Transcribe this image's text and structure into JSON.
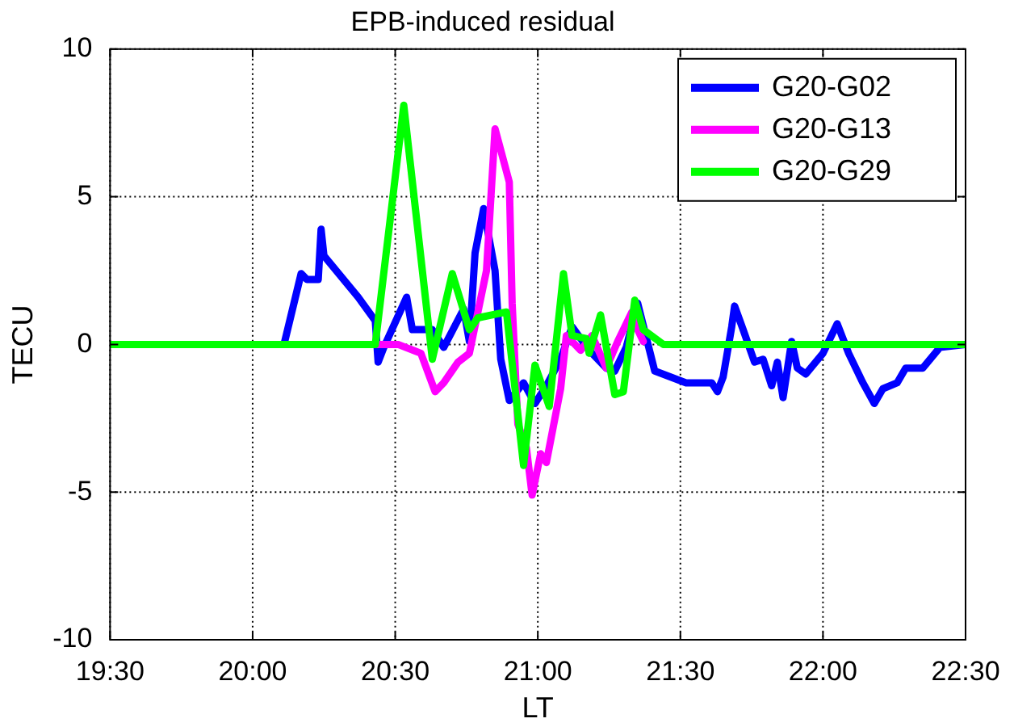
{
  "chart_data": {
    "type": "line",
    "title": "EPB-induced residual",
    "xlabel": "LT",
    "ylabel": "TECU",
    "xlim": [
      19.5,
      22.5
    ],
    "xticks": [
      {
        "value": 19.5,
        "label": "19:30"
      },
      {
        "value": 20,
        "label": "20:00"
      },
      {
        "value": 20.5,
        "label": "20:30"
      },
      {
        "value": 21,
        "label": "21:00"
      },
      {
        "value": 21.5,
        "label": "21:30"
      },
      {
        "value": 22,
        "label": "22:00"
      },
      {
        "value": 22.5,
        "label": "22:30"
      }
    ],
    "ylim": [
      -10,
      10
    ],
    "yticks": [
      -10,
      -5,
      0,
      5,
      10
    ],
    "grid": true,
    "legend": "top right",
    "marker": "none",
    "line_style": "solid",
    "series": [
      {
        "name": "G20-G02",
        "color": "#0000ff",
        "x": [
          19.5,
          20.11,
          20.17,
          20.19,
          20.23,
          20.24,
          20.25,
          20.37,
          20.43,
          20.44,
          20.46,
          20.54,
          20.56,
          20.63,
          20.67,
          20.74,
          20.76,
          20.78,
          20.81,
          20.85,
          20.87,
          20.9,
          20.95,
          20.99,
          21.03,
          21.08,
          21.12,
          21.18,
          21.24,
          21.27,
          21.31,
          21.35,
          21.41,
          21.52,
          21.61,
          21.63,
          21.65,
          21.68,
          21.69,
          21.72,
          21.76,
          21.79,
          21.82,
          21.84,
          21.86,
          21.89,
          21.91,
          21.94,
          22,
          22.05,
          22.09,
          22.14,
          22.18,
          22.21,
          22.26,
          22.29,
          22.35,
          22.41,
          22.5
        ],
        "values": [
          0,
          0,
          2.4,
          2.2,
          2.2,
          3.9,
          3,
          1.6,
          0.8,
          -0.6,
          -0.1,
          1.6,
          0.5,
          0.5,
          -0.1,
          1.2,
          0.1,
          3.1,
          4.6,
          2.5,
          -0.5,
          -1.9,
          -1.3,
          -2,
          -1.4,
          -0.5,
          0.6,
          -0.2,
          -0.8,
          -0.9,
          -0.1,
          1.4,
          -0.9,
          -1.3,
          -1.3,
          -1.6,
          -1.1,
          0.6,
          1.3,
          0.5,
          -0.6,
          -0.5,
          -1.4,
          -0.6,
          -1.8,
          0.1,
          -0.8,
          -1,
          -0.3,
          0.7,
          -0.3,
          -1.3,
          -2,
          -1.5,
          -1.3,
          -0.8,
          -0.8,
          -0.1,
          0
        ]
      },
      {
        "name": "G20-G13",
        "color": "#ff00ff",
        "x": [
          19.5,
          20.44,
          20.51,
          20.59,
          20.64,
          20.67,
          20.72,
          20.76,
          20.82,
          20.85,
          20.9,
          20.91,
          20.93,
          20.96,
          20.98,
          21.01,
          21.03,
          21.08,
          21.1,
          21.15,
          21.19,
          21.24,
          21.28,
          21.33,
          21.35,
          21.37
        ],
        "values": [
          0,
          0,
          0,
          -0.3,
          -1.6,
          -1.3,
          -0.6,
          -0.3,
          2.5,
          7.3,
          5.5,
          1.4,
          -2.7,
          -3.5,
          -5.1,
          -3.7,
          -4,
          -1.5,
          0.3,
          -0.2,
          0.3,
          -0.8,
          0.1,
          1.1,
          0.5,
          0.1
        ]
      },
      {
        "name": "G20-G29",
        "color": "#00ff00",
        "x": [
          19.5,
          20.43,
          20.53,
          20.63,
          20.7,
          20.76,
          20.79,
          20.89,
          20.95,
          20.99,
          21.04,
          21.09,
          21.12,
          21.17,
          21.18,
          21.22,
          21.27,
          21.3,
          21.34,
          21.37,
          21.44,
          22.5
        ],
        "values": [
          0,
          0,
          8.1,
          -0.5,
          2.4,
          0.5,
          0.9,
          1.1,
          -4.1,
          -0.7,
          -2.1,
          2.4,
          0.3,
          0.2,
          -0.3,
          1,
          -1.7,
          -1.6,
          1.5,
          0.5,
          0,
          0
        ]
      }
    ]
  }
}
